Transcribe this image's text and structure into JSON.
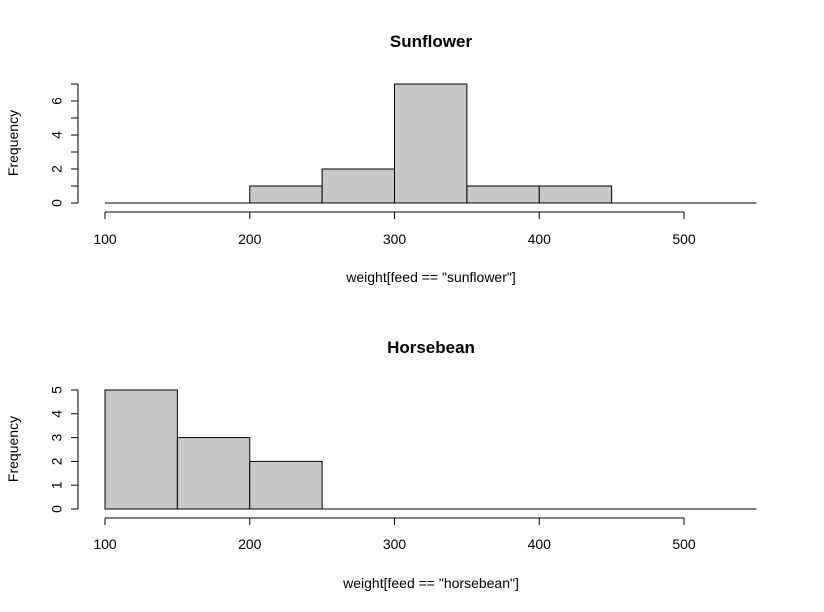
{
  "chart_data": [
    {
      "type": "bar",
      "title": "Sunflower",
      "xlabel": "weight[feed == \"sunflower\"]",
      "ylabel": "Frequency",
      "bin_edges": [
        100,
        150,
        200,
        250,
        300,
        350,
        400,
        450,
        500,
        550
      ],
      "values": [
        0,
        0,
        1,
        2,
        7,
        1,
        1,
        0,
        0
      ],
      "xlim": [
        100,
        550
      ],
      "ylim": [
        0,
        7
      ],
      "xticks": [
        100,
        200,
        300,
        400,
        500
      ],
      "yticks": [
        0,
        2,
        4,
        6
      ],
      "grid": false
    },
    {
      "type": "bar",
      "title": "Horsebean",
      "xlabel": "weight[feed == \"horsebean\"]",
      "ylabel": "Frequency",
      "bin_edges": [
        100,
        150,
        200,
        250,
        300,
        350,
        400,
        450,
        500,
        550
      ],
      "values": [
        5,
        3,
        2,
        0,
        0,
        0,
        0,
        0,
        0
      ],
      "xlim": [
        100,
        550
      ],
      "ylim": [
        0,
        5
      ],
      "xticks": [
        100,
        200,
        300,
        400,
        500
      ],
      "yticks": [
        0,
        1,
        2,
        3,
        4,
        5
      ],
      "grid": false
    }
  ]
}
